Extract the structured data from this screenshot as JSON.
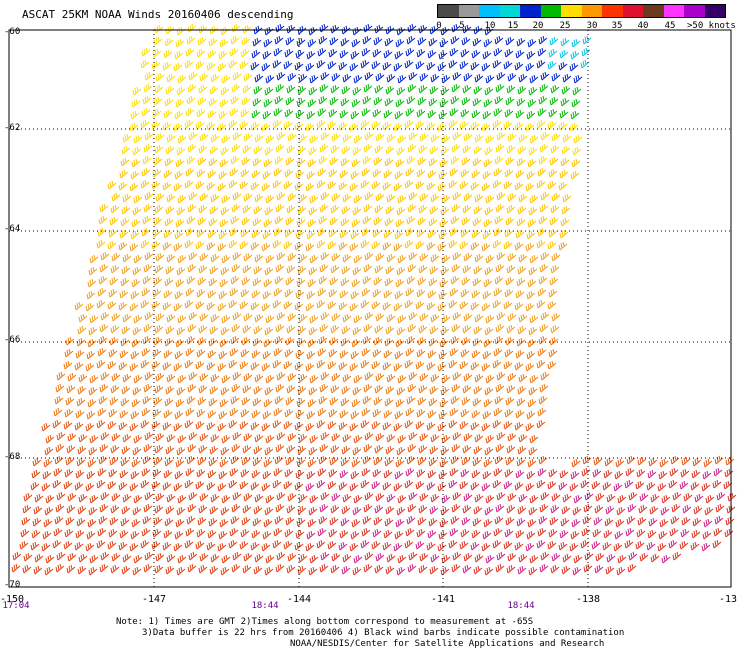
{
  "title": "ASCAT 25KM NOAA Winds 20160406 descending",
  "legend": {
    "labels": [
      "0",
      "5",
      "10",
      "15",
      "20",
      "25",
      "30",
      "35",
      "40",
      "45",
      ">50 knots"
    ],
    "colors": [
      "#4a4a4a",
      "#999999",
      "#00bfff",
      "#00d7d7",
      "#0022cc",
      "#00bb00",
      "#ffdd00",
      "#ff9900",
      "#ff3300",
      "#e01030",
      "#6b3a1c",
      "#ff33ff",
      "#aa00cc",
      "#330066"
    ]
  },
  "lat_labels": [
    "-60",
    "-62",
    "-64",
    "-66",
    "-68",
    "-70"
  ],
  "lon_labels": [
    "-150",
    "-147",
    "-144",
    "-141",
    "-138",
    "-13"
  ],
  "time_labels": [
    "17:04",
    "18:44",
    "18:44"
  ],
  "notes": {
    "line1": "Note: 1) Times are GMT 2)Times along bottom correspond to measurement at -65S",
    "line2": "3)Data buffer is 22 hrs from 20160406 4) Black wind barbs indicate possible contamination",
    "line3": "NOAA/NESDIS/Center for Satellite Applications and Research"
  }
}
